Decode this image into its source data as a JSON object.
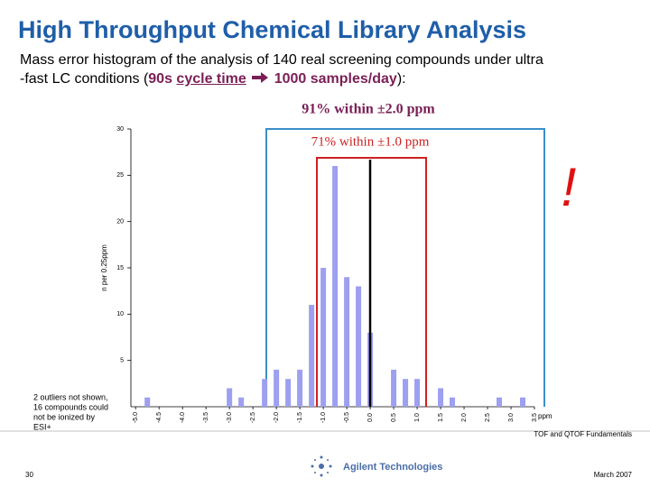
{
  "slide": {
    "title": "High Throughput Chemical Library Analysis",
    "subtitle_line1": "Mass error histogram of the analysis of 140 real screening compounds under ultra",
    "subtitle_line2_start": "-fast LC conditions (",
    "subtitle_cycle_num": "90s ",
    "subtitle_cycle_word": "cycle time",
    "subtitle_rate": "1000 samples/day",
    "subtitle_end": "):",
    "note_lines": [
      "2 outliers not shown,",
      "16 compounds could",
      "not be ionized by",
      "ESI+"
    ],
    "footer_title": "TOF and QTOF Fundamentals",
    "page_number": "30",
    "company": "Agilent Technologies",
    "date": "March 2007"
  },
  "chart_data": {
    "type": "bar",
    "annotation_outer": "91% within ±2.0 ppm",
    "annotation_inner": "71% within ±1.0 ppm",
    "annotation_alert": "!",
    "y_label": "n per 0.25ppm",
    "x_label": "ppm",
    "x": [
      -4.75,
      -3.0,
      -2.75,
      -2.25,
      -2.0,
      -1.75,
      -1.5,
      -1.25,
      -1.0,
      -0.75,
      -0.5,
      -0.25,
      0.0,
      0.5,
      0.75,
      1.0,
      1.5,
      1.75,
      2.75,
      3.25
    ],
    "values": [
      1,
      2,
      1,
      3,
      4,
      3,
      4,
      11,
      15,
      26,
      14,
      13,
      8,
      4,
      3,
      3,
      2,
      1,
      1,
      1
    ],
    "color": "#9d9ff0",
    "xlim": [
      -5.1,
      3.5
    ],
    "xticks": [
      {
        "value": -5,
        "label": "-5.0"
      },
      {
        "value": -4.5,
        "label": "-4.5"
      },
      {
        "value": -4,
        "label": "-4.0"
      },
      {
        "value": -3.5,
        "label": "-3.5"
      },
      {
        "value": -3,
        "label": "-3.0"
      },
      {
        "value": -2.5,
        "label": "-2.5"
      },
      {
        "value": -2,
        "label": "-2.0"
      },
      {
        "value": -1.5,
        "label": "-1.5"
      },
      {
        "value": -1,
        "label": "-1.0"
      },
      {
        "value": -0.5,
        "label": "-0.5"
      },
      {
        "value": 0,
        "label": "0.0"
      },
      {
        "value": 0.5,
        "label": "0.5"
      },
      {
        "value": 1,
        "label": "1.0"
      },
      {
        "value": 1.5,
        "label": "1.5"
      },
      {
        "value": 2,
        "label": "2.0"
      },
      {
        "value": 2.5,
        "label": "2.5"
      },
      {
        "value": 3,
        "label": "3.0"
      },
      {
        "value": 3.5,
        "label": "3.5"
      }
    ],
    "ylim": [
      0,
      30
    ],
    "yticks": [
      5,
      10,
      15,
      20,
      25,
      30
    ]
  }
}
